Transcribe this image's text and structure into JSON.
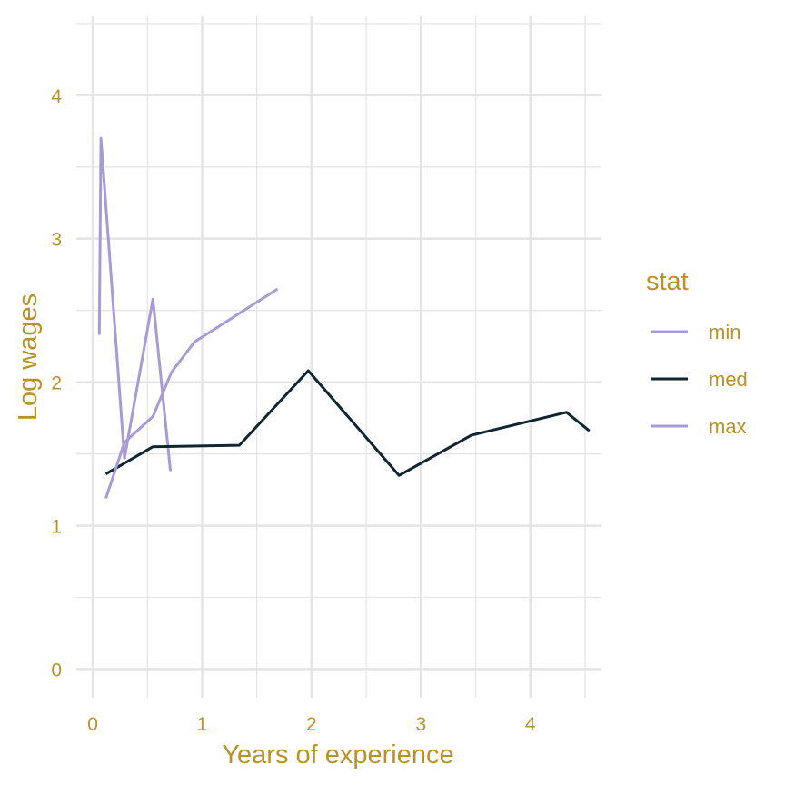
{
  "chart_data": {
    "type": "line",
    "xlabel": "Years of experience",
    "ylabel": "Log wages",
    "xlim": [
      -0.15,
      4.65
    ],
    "ylim": [
      -0.2,
      4.55
    ],
    "x_ticks": [
      0,
      1,
      2,
      3,
      4
    ],
    "y_ticks": [
      0,
      1,
      2,
      3,
      4
    ],
    "grid": true,
    "legend": {
      "title": "stat",
      "placement": "right"
    },
    "colors": {
      "text": "#B8912A",
      "grid": "#E5E5E5",
      "min": "#A89BD3",
      "med": "#0F2530",
      "max": "#A89BD3"
    },
    "series": [
      {
        "name": "min",
        "x": [
          0.06,
          0.075,
          0.29,
          0.55,
          0.71
        ],
        "y": [
          2.33,
          3.7,
          1.47,
          2.58,
          1.38
        ]
      },
      {
        "name": "med",
        "x": [
          0.12,
          0.55,
          1.34,
          1.97,
          2.8,
          3.46,
          4.33,
          4.54
        ],
        "y": [
          1.36,
          1.55,
          1.56,
          2.08,
          1.35,
          1.63,
          1.79,
          1.66
        ]
      },
      {
        "name": "max",
        "x": [
          0.12,
          0.29,
          0.55,
          0.72,
          0.93,
          1.69
        ],
        "y": [
          1.19,
          1.58,
          1.76,
          2.07,
          2.28,
          2.65
        ]
      }
    ]
  }
}
